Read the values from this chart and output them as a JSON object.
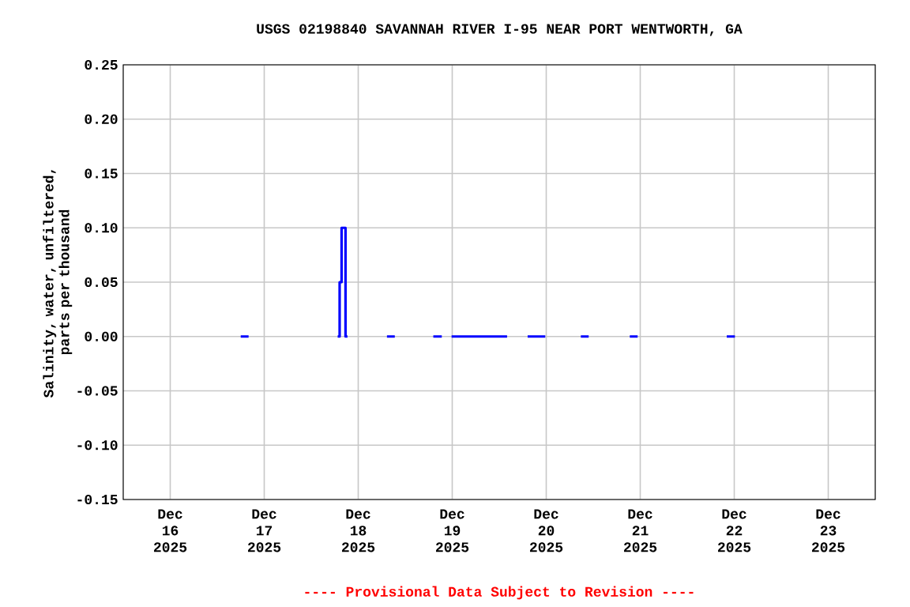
{
  "chart_data": {
    "type": "line",
    "title": "USGS 02198840 SAVANNAH RIVER I-95 NEAR PORT WENTWORTH, GA",
    "ylabel": "Salinity, water, unfiltered, parts per thousand",
    "annotations": [
      "---- Provisional Data Subject to Revision ----"
    ],
    "x": [
      "2025-12-16T18:00",
      "2025-12-16T20:00",
      null,
      "2025-12-17T18:45",
      "2025-12-17T19:15",
      "2025-12-17T19:15",
      "2025-12-17T19:45",
      "2025-12-17T19:45",
      "2025-12-17T20:45",
      "2025-12-17T20:45",
      "2025-12-17T21:15",
      null,
      "2025-12-18T07:20",
      "2025-12-18T09:20",
      null,
      "2025-12-18T19:10",
      "2025-12-18T21:20",
      null,
      "2025-12-18T23:50",
      "2025-12-19T14:00",
      null,
      "2025-12-19T19:15",
      "2025-12-19T23:45",
      null,
      "2025-12-20T08:50",
      "2025-12-20T10:50",
      null,
      "2025-12-20T21:20",
      "2025-12-20T23:20",
      null,
      "2025-12-21T22:05",
      "2025-12-22T00:10"
    ],
    "series": [
      {
        "color": "#0000ff",
        "values": [
          0,
          0,
          null,
          0,
          0,
          0.05,
          0.05,
          0.1,
          0.1,
          0,
          0,
          null,
          0,
          0,
          null,
          0,
          0,
          null,
          0,
          0,
          null,
          0,
          0,
          null,
          0,
          0,
          null,
          0,
          0,
          null,
          0,
          0
        ]
      }
    ],
    "xlim": [
      "2025-12-15T12:00",
      "2025-12-23T12:00"
    ],
    "xticks": [
      {
        "value": "2025-12-16",
        "label": "Dec 16 2025"
      },
      {
        "value": "2025-12-17",
        "label": "Dec 17 2025"
      },
      {
        "value": "2025-12-18",
        "label": "Dec 18 2025"
      },
      {
        "value": "2025-12-19",
        "label": "Dec 19 2025"
      },
      {
        "value": "2025-12-20",
        "label": "Dec 20 2025"
      },
      {
        "value": "2025-12-21",
        "label": "Dec 21 2025"
      },
      {
        "value": "2025-12-22",
        "label": "Dec 22 2025"
      },
      {
        "value": "2025-12-23",
        "label": "Dec 23 2025"
      }
    ],
    "ylim": [
      -0.15,
      0.25
    ],
    "yticks": [
      {
        "value": -0.15,
        "label": "-0.15"
      },
      {
        "value": -0.1,
        "label": "-0.10"
      },
      {
        "value": -0.05,
        "label": "-0.05"
      },
      {
        "value": 0,
        "label": "0.00"
      },
      {
        "value": 0.05,
        "label": "0.05"
      },
      {
        "value": 0.1,
        "label": "0.10"
      },
      {
        "value": 0.15,
        "label": "0.15"
      },
      {
        "value": 0.2,
        "label": "0.20"
      },
      {
        "value": 0.25,
        "label": "0.25"
      }
    ],
    "grid": true,
    "marker": "none",
    "line_style": "solid"
  }
}
